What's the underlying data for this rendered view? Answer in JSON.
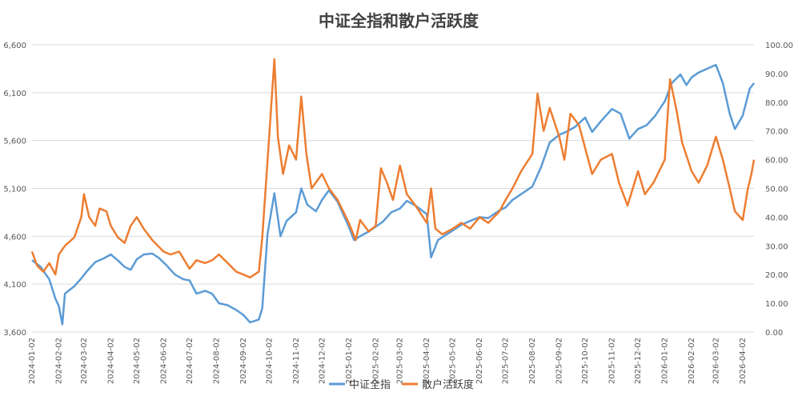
{
  "chart_data": {
    "type": "line",
    "title": "中证全指和散户活跃度",
    "left_axis": {
      "min": 3600,
      "max": 6600,
      "step": 500,
      "tick_labels": [
        "3,600",
        "4,100",
        "4,600",
        "5,100",
        "5,600",
        "6,100",
        "6,600"
      ]
    },
    "right_axis": {
      "min": 0,
      "max": 100,
      "step": 10,
      "tick_labels": [
        "0.00",
        "10.00",
        "20.00",
        "30.00",
        "40.00",
        "50.00",
        "60.00",
        "70.00",
        "80.00",
        "90.00",
        "100.00"
      ]
    },
    "x_tick_labels": [
      "2024-01-02",
      "2024-02-02",
      "2024-03-02",
      "2024-04-02",
      "2024-05-02",
      "2024-06-02",
      "2024-07-02",
      "2024-08-02",
      "2024-09-02",
      "2024-10-02",
      "2024-11-02",
      "2024-12-02",
      "2025-01-02",
      "2025-02-02",
      "2025-03-02",
      "2025-04-02",
      "2025-05-02",
      "2025-06-02",
      "2025-07-02",
      "2025-08-02",
      "2025-09-02",
      "2025-10-02",
      "2025-11-02",
      "2025-12-02",
      "2026-01-02",
      "2026-02-02",
      "2026-03-02",
      "2026-04-02"
    ],
    "grid": true,
    "legend_position": "bottom",
    "series": [
      {
        "name": "中证全指",
        "axis": "left",
        "color": "#5b9bd5",
        "points": [
          [
            "2024-01-02",
            4350
          ],
          [
            "2024-01-12",
            4280
          ],
          [
            "2024-01-22",
            4150
          ],
          [
            "2024-01-29",
            3950
          ],
          [
            "2024-02-02",
            3870
          ],
          [
            "2024-02-06",
            3680
          ],
          [
            "2024-02-09",
            4000
          ],
          [
            "2024-02-20",
            4080
          ],
          [
            "2024-02-28",
            4160
          ],
          [
            "2024-03-05",
            4230
          ],
          [
            "2024-03-15",
            4330
          ],
          [
            "2024-03-25",
            4370
          ],
          [
            "2024-04-02",
            4410
          ],
          [
            "2024-04-10",
            4350
          ],
          [
            "2024-04-18",
            4280
          ],
          [
            "2024-04-25",
            4250
          ],
          [
            "2024-05-02",
            4360
          ],
          [
            "2024-05-10",
            4410
          ],
          [
            "2024-05-20",
            4420
          ],
          [
            "2024-05-28",
            4370
          ],
          [
            "2024-06-05",
            4300
          ],
          [
            "2024-06-15",
            4200
          ],
          [
            "2024-06-25",
            4150
          ],
          [
            "2024-07-02",
            4140
          ],
          [
            "2024-07-10",
            4000
          ],
          [
            "2024-07-20",
            4030
          ],
          [
            "2024-07-28",
            4000
          ],
          [
            "2024-08-05",
            3900
          ],
          [
            "2024-08-15",
            3880
          ],
          [
            "2024-08-25",
            3830
          ],
          [
            "2024-09-02",
            3780
          ],
          [
            "2024-09-10",
            3700
          ],
          [
            "2024-09-20",
            3730
          ],
          [
            "2024-09-24",
            3850
          ],
          [
            "2024-09-30",
            4620
          ],
          [
            "2024-10-08",
            5050
          ],
          [
            "2024-10-15",
            4600
          ],
          [
            "2024-10-22",
            4760
          ],
          [
            "2024-11-02",
            4850
          ],
          [
            "2024-11-08",
            5100
          ],
          [
            "2024-11-15",
            4930
          ],
          [
            "2024-11-25",
            4860
          ],
          [
            "2024-12-02",
            4980
          ],
          [
            "2024-12-10",
            5080
          ],
          [
            "2024-12-20",
            4960
          ],
          [
            "2025-01-02",
            4700
          ],
          [
            "2025-01-08",
            4560
          ],
          [
            "2025-01-15",
            4600
          ],
          [
            "2025-01-25",
            4650
          ],
          [
            "2025-02-02",
            4700
          ],
          [
            "2025-02-10",
            4750
          ],
          [
            "2025-02-20",
            4850
          ],
          [
            "2025-03-02",
            4890
          ],
          [
            "2025-03-10",
            4970
          ],
          [
            "2025-03-20",
            4920
          ],
          [
            "2025-04-02",
            4830
          ],
          [
            "2025-04-07",
            4380
          ],
          [
            "2025-04-15",
            4560
          ],
          [
            "2025-04-25",
            4620
          ],
          [
            "2025-05-02",
            4660
          ],
          [
            "2025-05-12",
            4720
          ],
          [
            "2025-05-22",
            4760
          ],
          [
            "2025-06-02",
            4800
          ],
          [
            "2025-06-12",
            4790
          ],
          [
            "2025-06-25",
            4870
          ],
          [
            "2025-07-02",
            4900
          ],
          [
            "2025-07-10",
            4980
          ],
          [
            "2025-07-20",
            5040
          ],
          [
            "2025-08-02",
            5120
          ],
          [
            "2025-08-12",
            5320
          ],
          [
            "2025-08-22",
            5580
          ],
          [
            "2025-09-02",
            5660
          ],
          [
            "2025-09-10",
            5690
          ],
          [
            "2025-09-20",
            5740
          ],
          [
            "2025-10-02",
            5840
          ],
          [
            "2025-10-10",
            5690
          ],
          [
            "2025-10-20",
            5800
          ],
          [
            "2025-11-02",
            5930
          ],
          [
            "2025-11-12",
            5880
          ],
          [
            "2025-11-22",
            5620
          ],
          [
            "2025-12-02",
            5720
          ],
          [
            "2025-12-12",
            5760
          ],
          [
            "2025-12-22",
            5860
          ],
          [
            "2026-01-02",
            6010
          ],
          [
            "2026-01-10",
            6200
          ],
          [
            "2026-01-20",
            6290
          ],
          [
            "2026-01-27",
            6180
          ],
          [
            "2026-02-02",
            6260
          ],
          [
            "2026-02-10",
            6310
          ],
          [
            "2026-02-20",
            6350
          ],
          [
            "2026-03-02",
            6390
          ],
          [
            "2026-03-10",
            6200
          ],
          [
            "2026-03-18",
            5880
          ],
          [
            "2026-03-24",
            5720
          ],
          [
            "2026-04-02",
            5860
          ],
          [
            "2026-04-10",
            6140
          ],
          [
            "2026-04-15",
            6200
          ]
        ]
      },
      {
        "name": "散户活跃度",
        "axis": "right",
        "color": "#ed7d31",
        "points": [
          [
            "2024-01-02",
            28
          ],
          [
            "2024-01-08",
            23
          ],
          [
            "2024-01-15",
            21
          ],
          [
            "2024-01-22",
            24
          ],
          [
            "2024-01-29",
            20
          ],
          [
            "2024-02-02",
            27
          ],
          [
            "2024-02-09",
            30
          ],
          [
            "2024-02-20",
            33
          ],
          [
            "2024-02-28",
            40
          ],
          [
            "2024-03-02",
            48
          ],
          [
            "2024-03-08",
            40
          ],
          [
            "2024-03-15",
            37
          ],
          [
            "2024-03-20",
            43
          ],
          [
            "2024-03-28",
            42
          ],
          [
            "2024-04-02",
            37
          ],
          [
            "2024-04-10",
            33
          ],
          [
            "2024-04-18",
            31
          ],
          [
            "2024-04-25",
            37
          ],
          [
            "2024-05-02",
            40
          ],
          [
            "2024-05-10",
            36
          ],
          [
            "2024-05-20",
            32
          ],
          [
            "2024-06-02",
            28
          ],
          [
            "2024-06-10",
            27
          ],
          [
            "2024-06-20",
            28
          ],
          [
            "2024-07-02",
            22
          ],
          [
            "2024-07-10",
            25
          ],
          [
            "2024-07-20",
            24
          ],
          [
            "2024-07-28",
            25
          ],
          [
            "2024-08-05",
            27
          ],
          [
            "2024-08-15",
            24
          ],
          [
            "2024-08-25",
            21
          ],
          [
            "2024-09-02",
            20
          ],
          [
            "2024-09-10",
            19
          ],
          [
            "2024-09-20",
            21
          ],
          [
            "2024-09-24",
            33
          ],
          [
            "2024-10-02",
            68
          ],
          [
            "2024-10-08",
            95
          ],
          [
            "2024-10-12",
            68
          ],
          [
            "2024-10-18",
            55
          ],
          [
            "2024-10-25",
            65
          ],
          [
            "2024-11-02",
            60
          ],
          [
            "2024-11-08",
            82
          ],
          [
            "2024-11-14",
            62
          ],
          [
            "2024-11-20",
            50
          ],
          [
            "2024-12-02",
            55
          ],
          [
            "2024-12-10",
            50
          ],
          [
            "2024-12-20",
            46
          ],
          [
            "2025-01-02",
            38
          ],
          [
            "2025-01-10",
            32
          ],
          [
            "2025-01-15",
            39
          ],
          [
            "2025-01-25",
            35
          ],
          [
            "2025-02-02",
            37
          ],
          [
            "2025-02-08",
            57
          ],
          [
            "2025-02-15",
            52
          ],
          [
            "2025-02-22",
            46
          ],
          [
            "2025-03-02",
            58
          ],
          [
            "2025-03-10",
            48
          ],
          [
            "2025-03-20",
            44
          ],
          [
            "2025-04-02",
            38
          ],
          [
            "2025-04-07",
            50
          ],
          [
            "2025-04-12",
            36
          ],
          [
            "2025-04-20",
            34
          ],
          [
            "2025-05-02",
            36
          ],
          [
            "2025-05-12",
            38
          ],
          [
            "2025-05-22",
            36
          ],
          [
            "2025-06-02",
            40
          ],
          [
            "2025-06-12",
            38
          ],
          [
            "2025-06-25",
            42
          ],
          [
            "2025-07-02",
            46
          ],
          [
            "2025-07-10",
            50
          ],
          [
            "2025-07-20",
            56
          ],
          [
            "2025-08-02",
            62
          ],
          [
            "2025-08-08",
            83
          ],
          [
            "2025-08-15",
            70
          ],
          [
            "2025-08-22",
            78
          ],
          [
            "2025-09-02",
            68
          ],
          [
            "2025-09-08",
            60
          ],
          [
            "2025-09-15",
            76
          ],
          [
            "2025-09-25",
            72
          ],
          [
            "2025-10-02",
            64
          ],
          [
            "2025-10-10",
            55
          ],
          [
            "2025-10-20",
            60
          ],
          [
            "2025-11-02",
            62
          ],
          [
            "2025-11-10",
            52
          ],
          [
            "2025-11-20",
            44
          ],
          [
            "2025-12-02",
            56
          ],
          [
            "2025-12-10",
            48
          ],
          [
            "2025-12-20",
            52
          ],
          [
            "2026-01-02",
            60
          ],
          [
            "2026-01-08",
            88
          ],
          [
            "2026-01-15",
            78
          ],
          [
            "2026-01-22",
            66
          ],
          [
            "2026-02-02",
            56
          ],
          [
            "2026-02-10",
            52
          ],
          [
            "2026-02-20",
            58
          ],
          [
            "2026-03-02",
            68
          ],
          [
            "2026-03-10",
            60
          ],
          [
            "2026-03-18",
            50
          ],
          [
            "2026-03-24",
            42
          ],
          [
            "2026-04-02",
            39
          ],
          [
            "2026-04-08",
            50
          ],
          [
            "2026-04-12",
            55
          ],
          [
            "2026-04-15",
            60
          ]
        ]
      }
    ]
  }
}
